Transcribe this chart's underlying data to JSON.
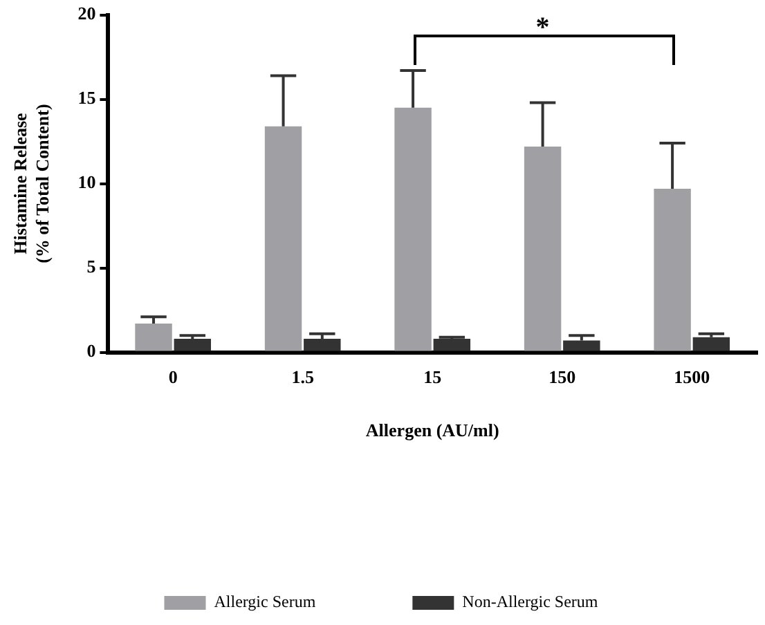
{
  "chart_data": {
    "type": "bar",
    "categories": [
      "0",
      "1.5",
      "15",
      "150",
      "1500"
    ],
    "xlabel": "Allergen (AU/ml)",
    "ylabel": "Histamine Release\n(% of Total Content)",
    "ylim": [
      0,
      20
    ],
    "yticks": [
      0,
      5,
      10,
      15,
      20
    ],
    "series": [
      {
        "name": "Allergic Serum",
        "color": "#a0a0a4",
        "values": [
          1.7,
          13.4,
          14.5,
          12.2,
          9.7
        ],
        "errors": [
          [
            1.7,
            2.1
          ],
          [
            13.4,
            16.4
          ],
          [
            14.5,
            16.7
          ],
          [
            12.2,
            14.8
          ],
          [
            9.7,
            12.4
          ]
        ]
      },
      {
        "name": "Non-Allergic Serum",
        "color": "#333333",
        "values": [
          0.8,
          0.8,
          0.8,
          0.7,
          0.9
        ],
        "errors": [
          [
            0.8,
            1.0
          ],
          [
            0.8,
            1.1
          ],
          [
            0.8,
            0.9
          ],
          [
            0.7,
            1.0
          ],
          [
            0.9,
            1.1
          ]
        ]
      }
    ],
    "annotations": [
      "*"
    ],
    "grid": false,
    "legend": "bottom"
  }
}
